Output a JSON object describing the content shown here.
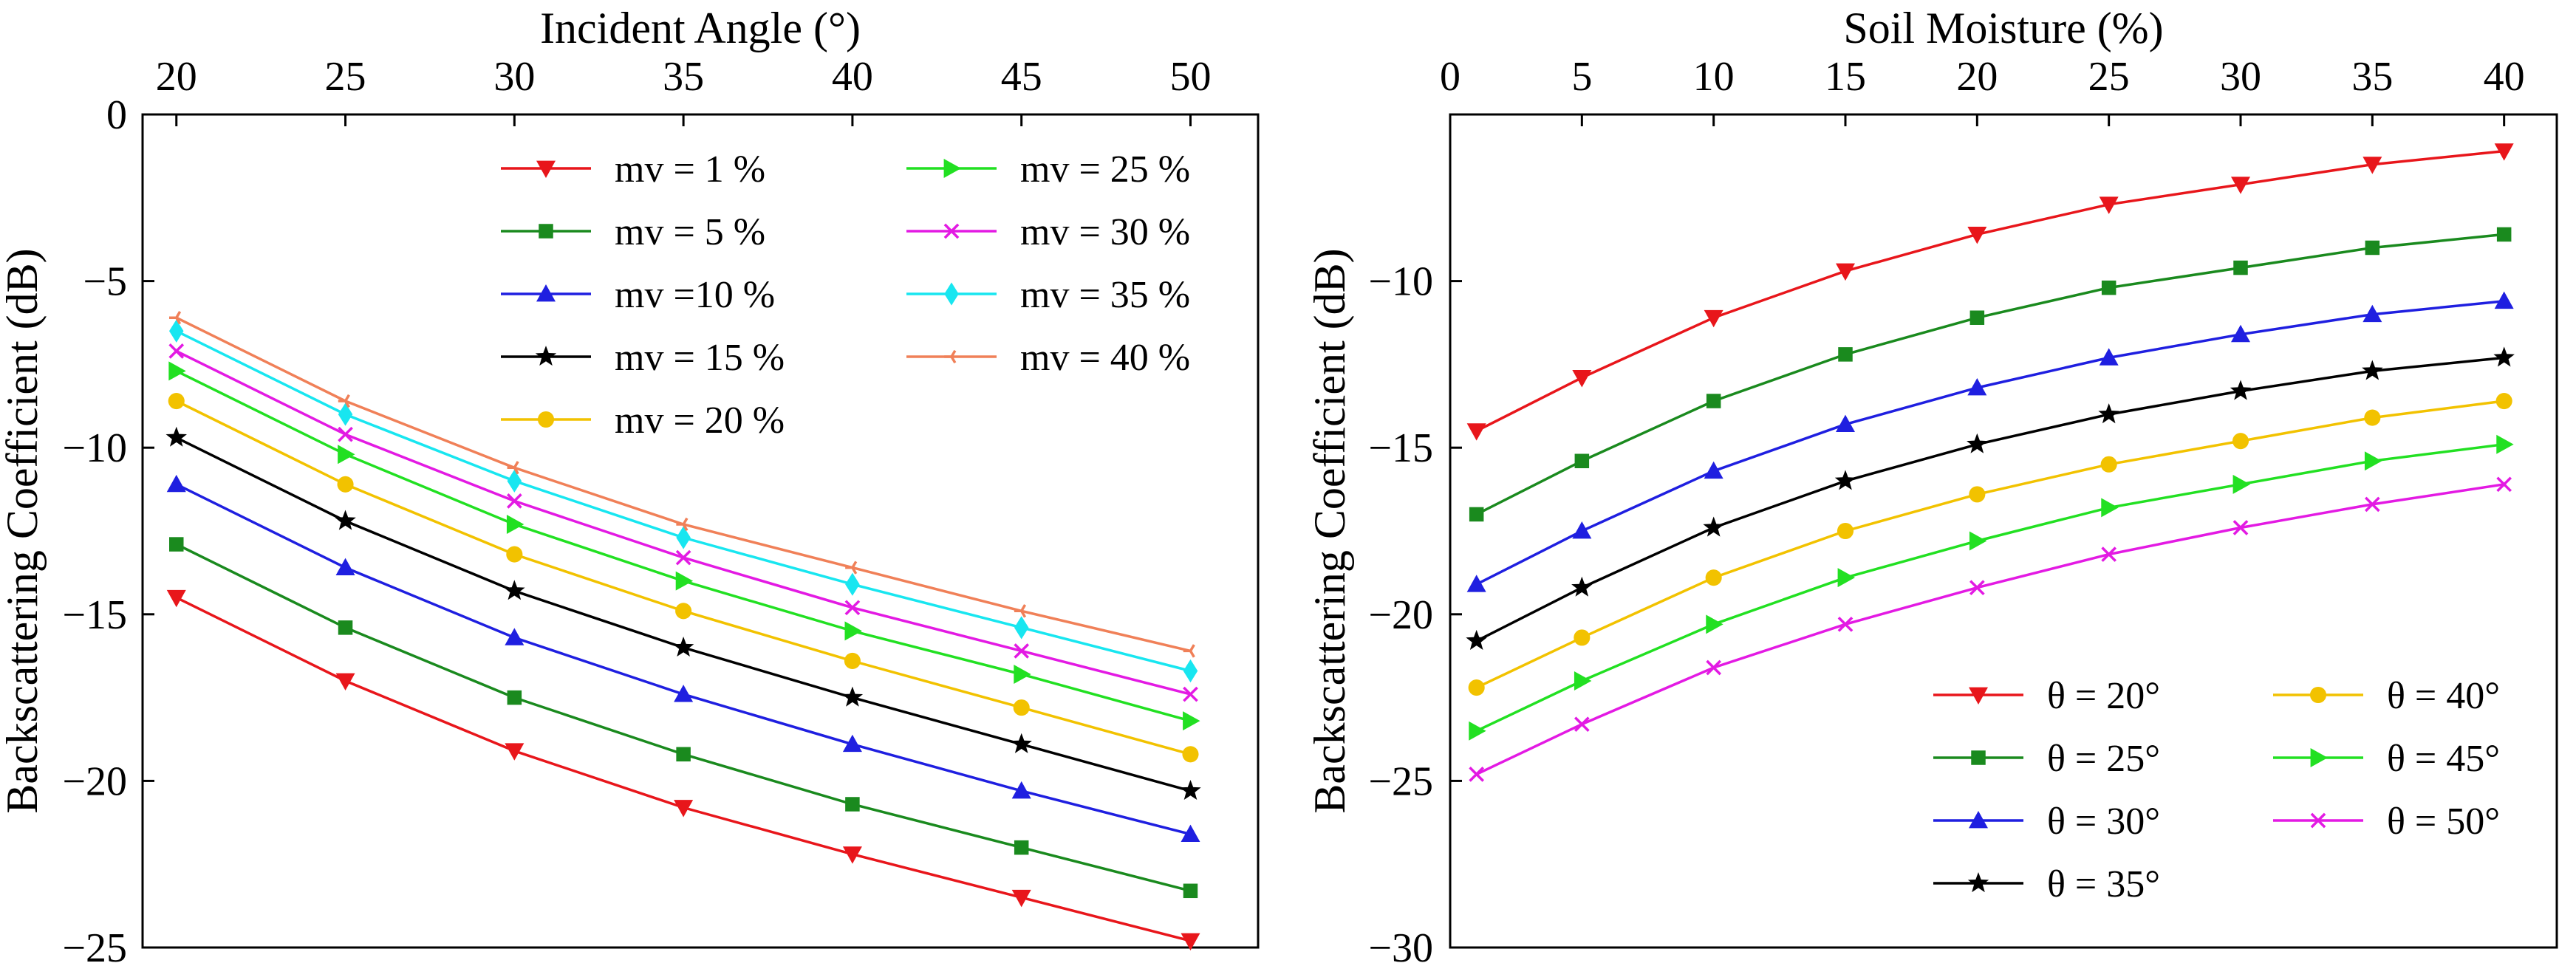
{
  "figure": {
    "panel_count": 2
  },
  "chart_data": [
    {
      "type": "line",
      "title": "",
      "xlabel": "Incident Angle (°)",
      "ylabel": "Backscattering Coefficient (dB)",
      "xaxis_position": "top",
      "xlim": [
        19,
        52
      ],
      "ylim": [
        -25,
        0
      ],
      "xticks": [
        20,
        25,
        30,
        35,
        40,
        45,
        50
      ],
      "yticks": [
        0,
        -5,
        -10,
        -15,
        -20,
        -25
      ],
      "ytick_labels": [
        "0",
        "−5",
        "−10",
        "−15",
        "−20",
        "−25"
      ],
      "grid": false,
      "legend_position": "top-right",
      "x": [
        20,
        25,
        30,
        35,
        40,
        45,
        50
      ],
      "series": [
        {
          "name": "mv = 1 %",
          "color": "#e8161b",
          "marker": "triangle-down",
          "values": [
            -14.5,
            -17.0,
            -19.1,
            -20.8,
            -22.2,
            -23.5,
            -24.8
          ]
        },
        {
          "name": "mv = 5 %",
          "color": "#1a8a1e",
          "marker": "square",
          "values": [
            -12.9,
            -15.4,
            -17.5,
            -19.2,
            -20.7,
            -22.0,
            -23.3
          ]
        },
        {
          "name": "mv =10 %",
          "color": "#1f1fe0",
          "marker": "triangle-up",
          "values": [
            -11.1,
            -13.6,
            -15.7,
            -17.4,
            -18.9,
            -20.3,
            -21.6
          ]
        },
        {
          "name": "mv = 15 %",
          "color": "#000000",
          "marker": "star",
          "values": [
            -9.7,
            -12.2,
            -14.3,
            -16.0,
            -17.5,
            -18.9,
            -20.3
          ]
        },
        {
          "name": "mv = 20 %",
          "color": "#f2c200",
          "marker": "circle",
          "values": [
            -8.6,
            -11.1,
            -13.2,
            -14.9,
            -16.4,
            -17.8,
            -19.2
          ]
        },
        {
          "name": "mv = 25 %",
          "color": "#22e022",
          "marker": "triangle-right",
          "values": [
            -7.7,
            -10.2,
            -12.3,
            -14.0,
            -15.5,
            -16.8,
            -18.2
          ]
        },
        {
          "name": "mv = 30 %",
          "color": "#e31ae3",
          "marker": "x",
          "values": [
            -7.1,
            -9.6,
            -11.6,
            -13.3,
            -14.8,
            -16.1,
            -17.4
          ]
        },
        {
          "name": "mv = 35 %",
          "color": "#18e6f0",
          "marker": "diamond",
          "values": [
            -6.5,
            -9.0,
            -11.0,
            -12.7,
            -14.1,
            -15.4,
            -16.7
          ]
        },
        {
          "name": "mv = 40 %",
          "color": "#f08058",
          "marker": "tri-left",
          "values": [
            -6.1,
            -8.6,
            -10.6,
            -12.3,
            -13.6,
            -14.9,
            -16.1
          ]
        }
      ]
    },
    {
      "type": "line",
      "title": "",
      "xlabel": "Soil Moisture (%)",
      "ylabel": "Backscattering Coefficient (dB)",
      "xaxis_position": "top",
      "xlim": [
        0,
        42
      ],
      "ylim": [
        -30,
        -5
      ],
      "xticks": [
        0,
        5,
        10,
        15,
        20,
        25,
        30,
        35,
        40
      ],
      "yticks": [
        -10,
        -15,
        -20,
        -25,
        -30
      ],
      "ytick_labels": [
        "−10",
        "−15",
        "−20",
        "−25",
        "−30"
      ],
      "grid": false,
      "legend_position": "bottom-right",
      "x": [
        1,
        5,
        10,
        15,
        20,
        25,
        30,
        35,
        40
      ],
      "series": [
        {
          "name": "θ = 20°",
          "color": "#e8161b",
          "marker": "triangle-down",
          "values": [
            -14.5,
            -12.9,
            -11.1,
            -9.7,
            -8.6,
            -7.7,
            -7.1,
            -6.5,
            -6.1
          ]
        },
        {
          "name": "θ = 25°",
          "color": "#1a8a1e",
          "marker": "square",
          "values": [
            -17.0,
            -15.4,
            -13.6,
            -12.2,
            -11.1,
            -10.2,
            -9.6,
            -9.0,
            -8.6
          ]
        },
        {
          "name": "θ = 30°",
          "color": "#1f1fe0",
          "marker": "triangle-up",
          "values": [
            -19.1,
            -17.5,
            -15.7,
            -14.3,
            -13.2,
            -12.3,
            -11.6,
            -11.0,
            -10.6
          ]
        },
        {
          "name": "θ = 35°",
          "color": "#000000",
          "marker": "star",
          "values": [
            -20.8,
            -19.2,
            -17.4,
            -16.0,
            -14.9,
            -14.0,
            -13.3,
            -12.7,
            -12.3
          ]
        },
        {
          "name": "θ = 40°",
          "color": "#f2c200",
          "marker": "circle",
          "values": [
            -22.2,
            -20.7,
            -18.9,
            -17.5,
            -16.4,
            -15.5,
            -14.8,
            -14.1,
            -13.6
          ]
        },
        {
          "name": "θ = 45°",
          "color": "#22e022",
          "marker": "triangle-right",
          "values": [
            -23.5,
            -22.0,
            -20.3,
            -18.9,
            -17.8,
            -16.8,
            -16.1,
            -15.4,
            -14.9
          ]
        },
        {
          "name": "θ = 50°",
          "color": "#e31ae3",
          "marker": "x",
          "values": [
            -24.8,
            -23.3,
            -21.6,
            -20.3,
            -19.2,
            -18.2,
            -17.4,
            -16.7,
            -16.1
          ]
        }
      ]
    }
  ]
}
